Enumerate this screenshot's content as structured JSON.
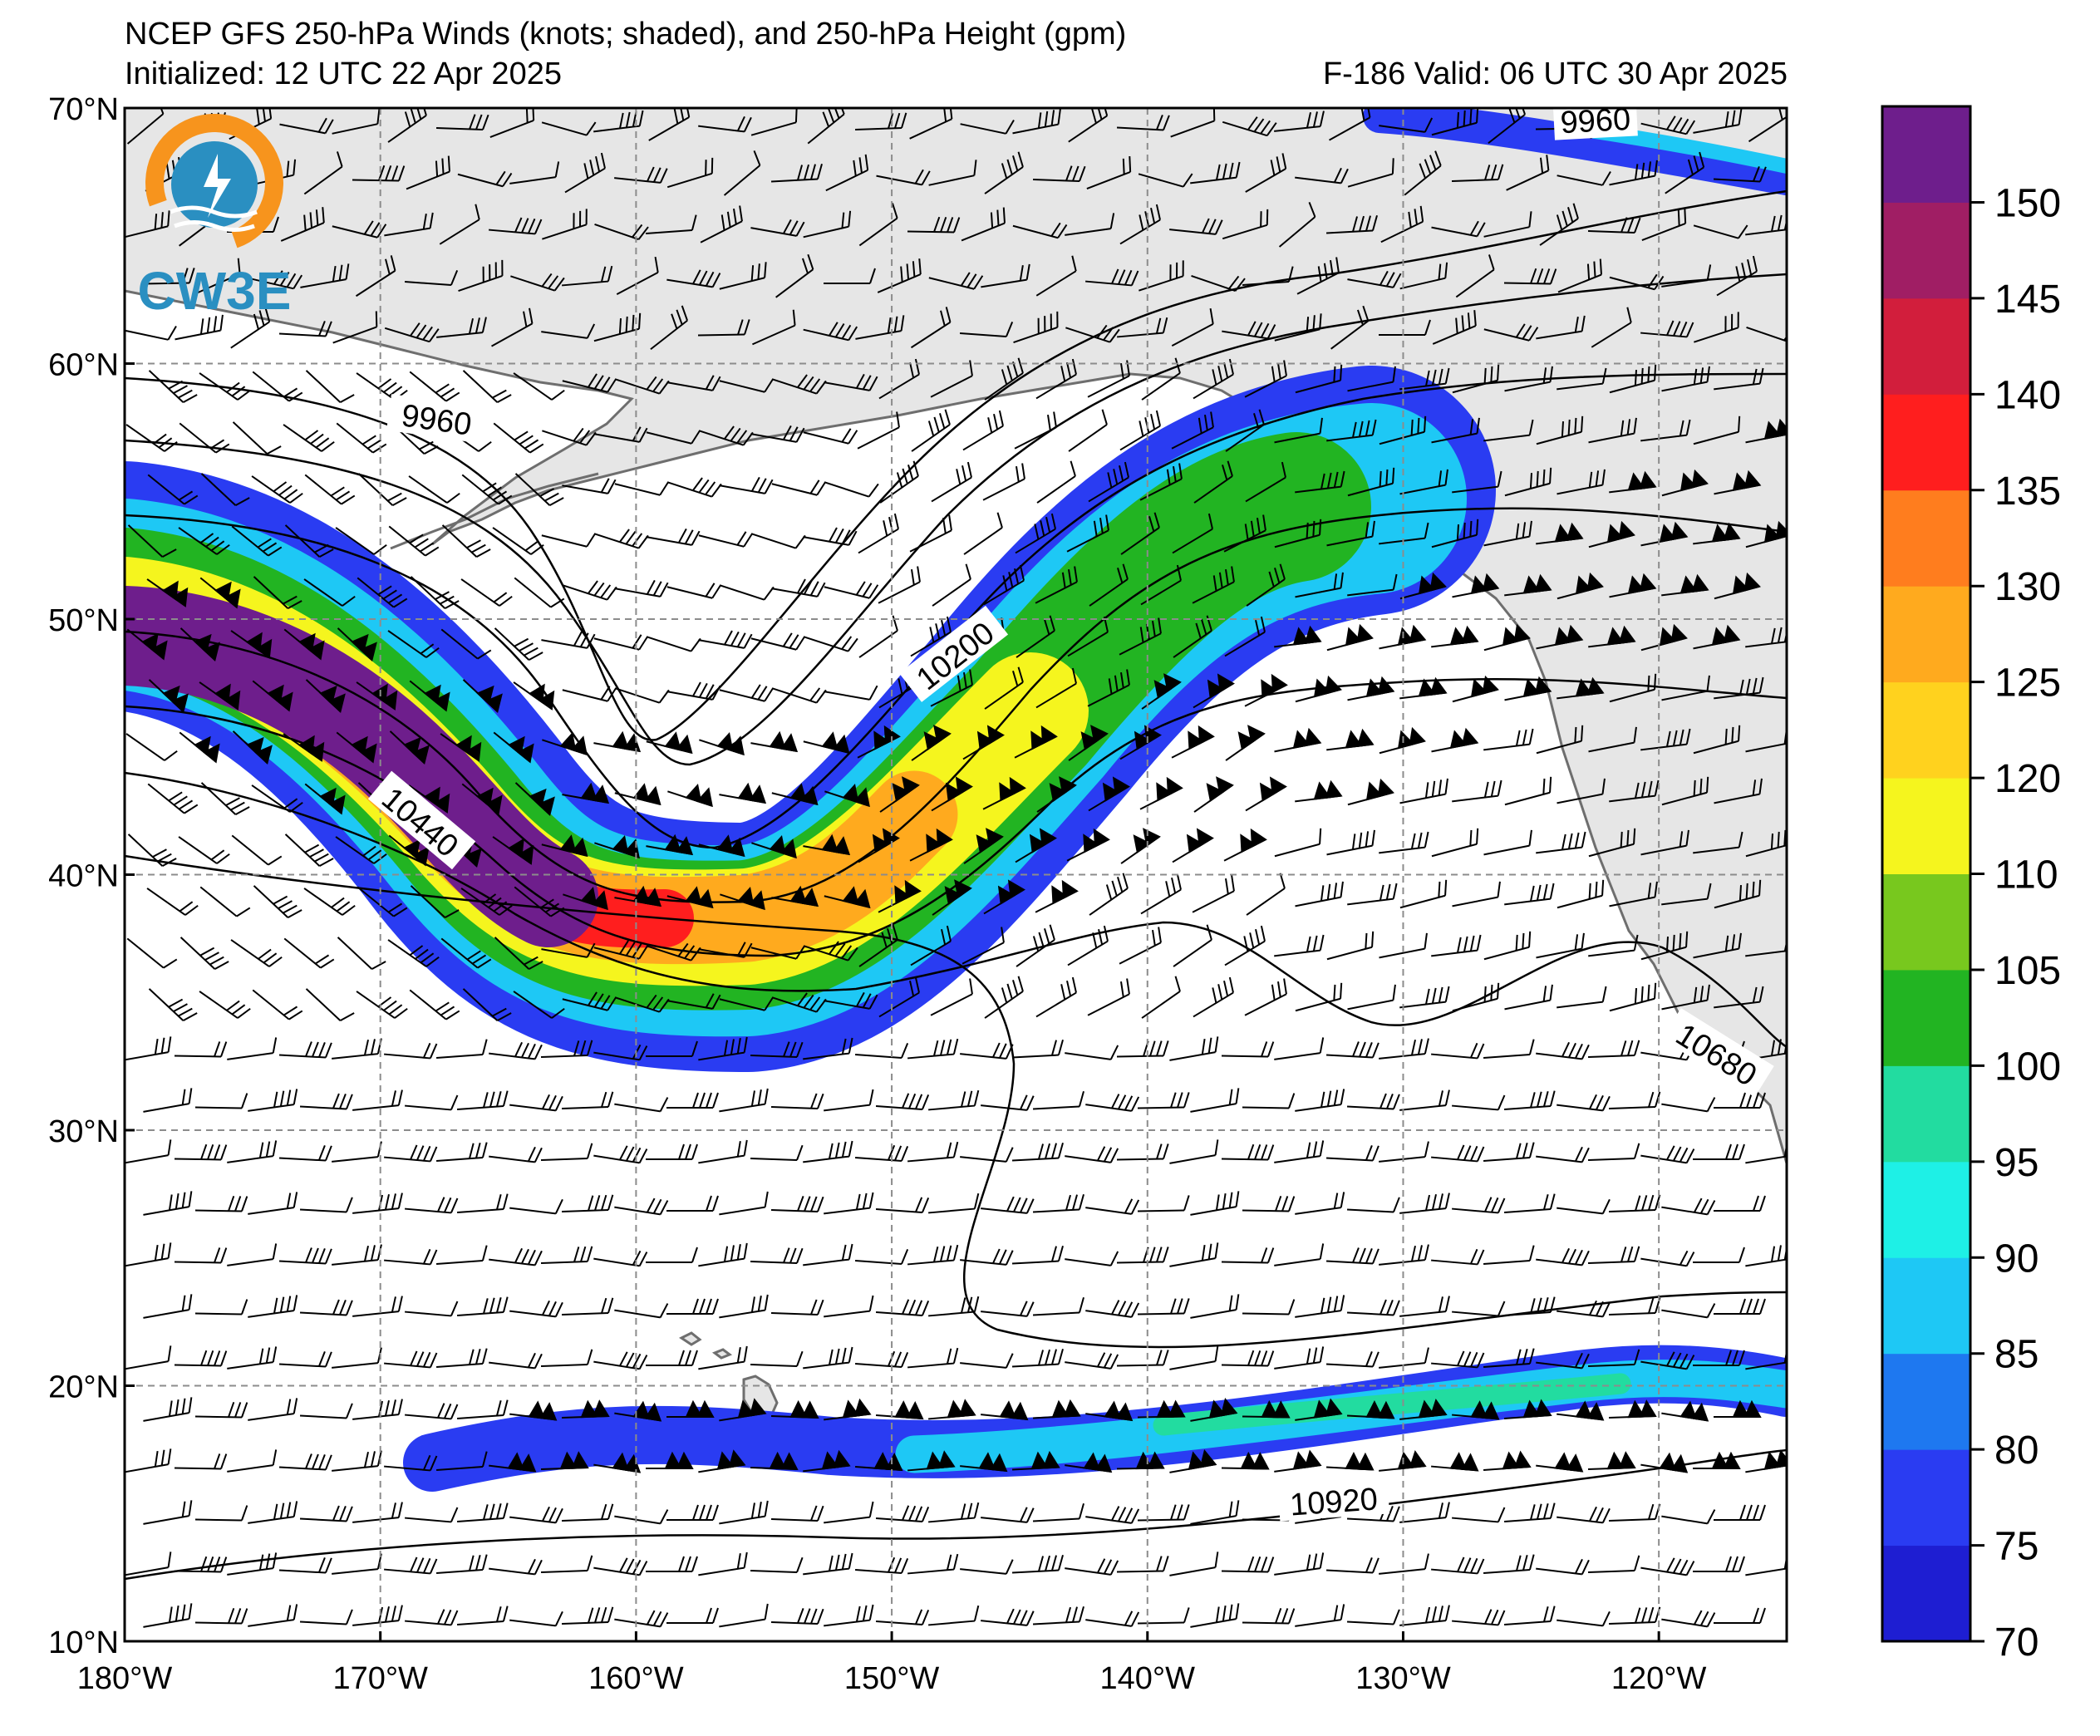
{
  "header": {
    "title": "NCEP GFS 250-hPa Winds (knots; shaded), and 250-hPa Height (gpm)",
    "initialized": "Initialized: 12 UTC 22 Apr 2025",
    "valid": "F-186  Valid: 06 UTC 30 Apr 2025"
  },
  "logo": {
    "text": "CW3E",
    "icon": "water-drop-lightning-icon",
    "colors": [
      "#f7941d",
      "#2a8fc1"
    ]
  },
  "axes": {
    "lat_labels": [
      "70°N",
      "60°N",
      "50°N",
      "40°N",
      "30°N",
      "20°N",
      "10°N"
    ],
    "lon_labels": [
      "180°W",
      "170°W",
      "160°W",
      "150°W",
      "140°W",
      "130°W",
      "120°W"
    ],
    "lat_range": [
      10,
      70
    ],
    "lon_range": [
      -180,
      -115
    ],
    "grid": "dashed gray"
  },
  "contour_labels": [
    "9960",
    "9960",
    "10200",
    "10440",
    "10680",
    "10920"
  ],
  "colorbar": {
    "tick_labels": [
      "70",
      "75",
      "80",
      "85",
      "90",
      "95",
      "100",
      "105",
      "110",
      "120",
      "125",
      "130",
      "135",
      "140",
      "145",
      "150"
    ],
    "colors": [
      "#1e1ed2",
      "#2a3cf2",
      "#1e78f0",
      "#1ec8f5",
      "#1ef0e6",
      "#22dca0",
      "#22b422",
      "#78c81e",
      "#f5f51e",
      "#ffd21e",
      "#ffaa1e",
      "#ff7d1e",
      "#ff1e1e",
      "#d21e3c",
      "#a01e64",
      "#6e1e8c"
    ],
    "range": [
      70,
      155
    ]
  },
  "colors": {
    "land": "#e6e6e6",
    "coast": "#6e6e6e",
    "contour": "#000000",
    "grid": "#8c8c8c"
  }
}
